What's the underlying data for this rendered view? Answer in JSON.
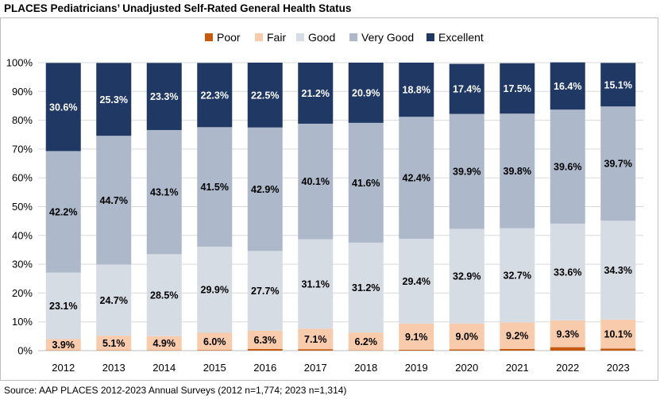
{
  "title": "PLACES Pediatricians’ Unadjusted Self-Rated General Health Status",
  "source": "Source: AAP PLACES 2012-2023 Annual Surveys (2012 n=1,774; 2023 n=1,314)",
  "chart_data": {
    "type": "bar",
    "stacked": true,
    "title": "PLACES Pediatricians’ Unadjusted Self-Rated General Health Status",
    "categories": [
      "2012",
      "2013",
      "2014",
      "2015",
      "2016",
      "2017",
      "2018",
      "2019",
      "2020",
      "2021",
      "2022",
      "2023"
    ],
    "ylim": [
      0,
      100
    ],
    "yticks": [
      "0%",
      "10%",
      "20%",
      "30%",
      "40%",
      "50%",
      "60%",
      "70%",
      "80%",
      "90%",
      "100%"
    ],
    "legend_position": "top-center",
    "grid": true,
    "series": [
      {
        "name": "Poor",
        "color": "#c55a11",
        "values": [
          0.1,
          0.1,
          0.1,
          0.2,
          0.6,
          0.5,
          0.1,
          0.3,
          0.4,
          0.6,
          1.2,
          0.7
        ],
        "labels": [
          "",
          "",
          "",
          "",
          "",
          "",
          "",
          "",
          "",
          "",
          "",
          ""
        ]
      },
      {
        "name": "Fair",
        "color": "#f8cbad",
        "values": [
          3.9,
          5.1,
          4.9,
          6.0,
          6.3,
          7.1,
          6.2,
          9.1,
          9.0,
          9.2,
          9.3,
          10.1
        ],
        "labels": [
          "3.9%",
          "5.1%",
          "4.9%",
          "6.0%",
          "6.3%",
          "7.1%",
          "6.2%",
          "9.1%",
          "9.0%",
          "9.2%",
          "9.3%",
          "10.1%"
        ]
      },
      {
        "name": "Good",
        "color": "#d6dce4",
        "values": [
          23.1,
          24.7,
          28.5,
          29.9,
          27.7,
          31.1,
          31.2,
          29.4,
          32.9,
          32.7,
          33.6,
          34.3
        ],
        "labels": [
          "23.1%",
          "24.7%",
          "28.5%",
          "29.9%",
          "27.7%",
          "31.1%",
          "31.2%",
          "29.4%",
          "32.9%",
          "32.7%",
          "33.6%",
          "34.3%"
        ]
      },
      {
        "name": "Very Good",
        "color": "#adb9ca",
        "values": [
          42.2,
          44.7,
          43.1,
          41.5,
          42.9,
          40.1,
          41.6,
          42.4,
          39.9,
          39.8,
          39.6,
          39.7
        ],
        "labels": [
          "42.2%",
          "44.7%",
          "43.1%",
          "41.5%",
          "42.9%",
          "40.1%",
          "41.6%",
          "42.4%",
          "39.9%",
          "39.8%",
          "39.6%",
          "39.7%"
        ]
      },
      {
        "name": "Excellent",
        "color": "#203864",
        "values": [
          30.6,
          25.3,
          23.3,
          22.3,
          22.5,
          21.2,
          20.9,
          18.8,
          17.4,
          17.5,
          16.4,
          15.1
        ],
        "labels": [
          "30.6%",
          "25.3%",
          "23.3%",
          "22.3%",
          "22.5%",
          "21.2%",
          "20.9%",
          "18.8%",
          "17.4%",
          "17.5%",
          "16.4%",
          "15.1%"
        ]
      }
    ]
  }
}
